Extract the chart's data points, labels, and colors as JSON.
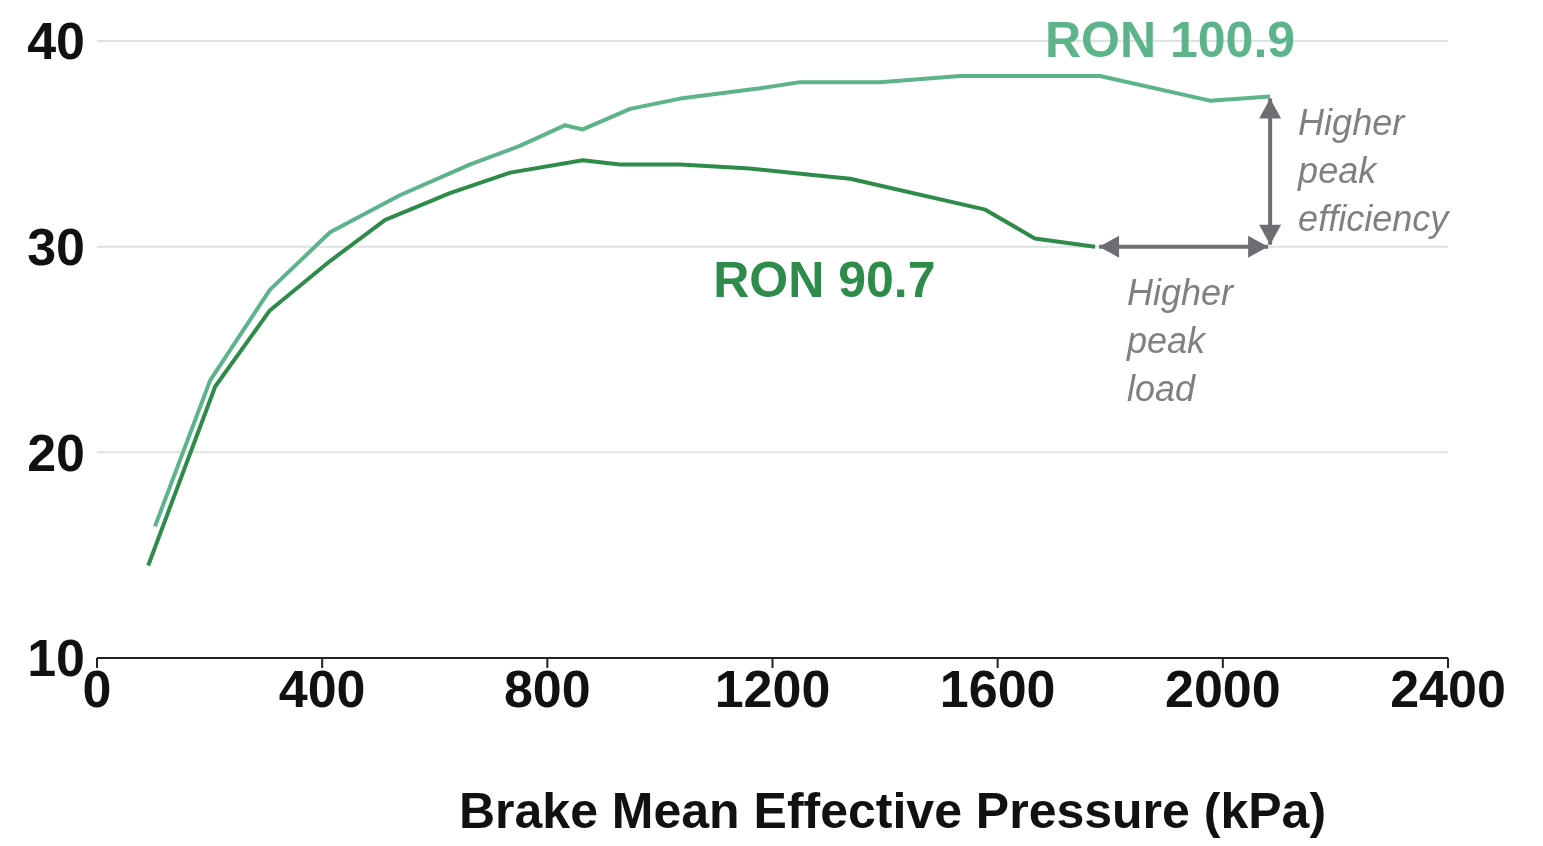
{
  "chart_data": {
    "type": "line",
    "xlabel": "Brake Mean Effective Pressure (kPa)",
    "xlim": [
      0,
      2400
    ],
    "xticks": [
      0,
      400,
      800,
      1200,
      1600,
      2000,
      2400
    ],
    "ylim": [
      10,
      40
    ],
    "yticks": [
      10,
      20,
      30,
      40
    ],
    "grid": "y",
    "legend": false,
    "marker": "none",
    "line_style": "solid",
    "series": [
      {
        "name": "RON 100.9",
        "color": "#5db38a",
        "x": [
          103,
          201,
          307,
          414,
          538,
          663,
          751,
          831,
          863,
          947,
          1036,
          1178,
          1249,
          1391,
          1533,
          1782,
          1977,
          2084
        ],
        "values": [
          16.4,
          23.5,
          27.9,
          30.7,
          32.5,
          34.0,
          34.9,
          35.9,
          35.7,
          36.7,
          37.2,
          37.7,
          38.0,
          38.0,
          38.3,
          38.3,
          37.1,
          37.3
        ]
      },
      {
        "name": "RON 90.7",
        "color": "#2e8b4a",
        "x": [
          91,
          210,
          307,
          414,
          512,
          627,
          734,
          863,
          929,
          1036,
          1160,
          1267,
          1338,
          1578,
          1666,
          1773
        ],
        "values": [
          14.5,
          23.2,
          26.9,
          29.3,
          31.3,
          32.6,
          33.6,
          34.2,
          34.0,
          34.0,
          33.8,
          33.5,
          33.3,
          31.8,
          30.4,
          30.0
        ]
      }
    ],
    "annotations": [
      {
        "text": "Higher peak efficiency",
        "x": 2084,
        "y": 37.3
      },
      {
        "text": "Higher peak load",
        "x": 1773,
        "y": 30.0
      }
    ]
  }
}
